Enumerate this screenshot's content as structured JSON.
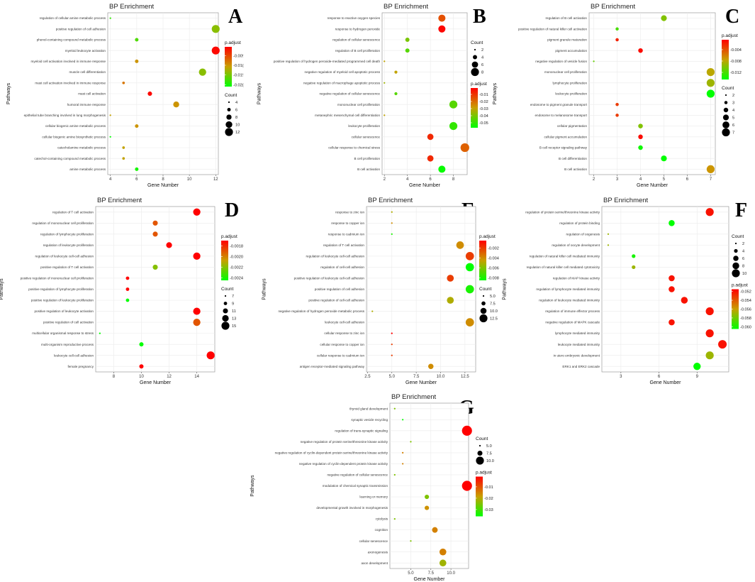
{
  "chart_data": [
    {
      "type": "scatter",
      "panel": "A",
      "title": "BP Enrichment",
      "xlabel": "Gene Number",
      "ylabel": "Pathways",
      "xlim": [
        3.8,
        12.2
      ],
      "xticks": [
        4,
        6,
        8,
        10,
        12
      ],
      "xtick_labels": [
        "4",
        "6",
        "8",
        "10",
        "12"
      ],
      "color_legend": {
        "title": "p.adjust",
        "min": -0.021,
        "max": -0.0005,
        "ticks": [
          -0.005,
          -0.01,
          -0.015,
          -0.02
        ],
        "tick_labels": [
          "-0.00!",
          "-0.01(",
          "-0.01!",
          "-0.02("
        ]
      },
      "size_legend": {
        "title": "Count",
        "values": [
          4,
          6,
          8,
          10,
          12
        ],
        "labels": [
          "4",
          "6",
          "8",
          "10",
          "12"
        ]
      },
      "categories": [
        "regulation of cellular amine metabolic process",
        "positive regulation of cell adhesion",
        "phenol-containing compound metabolic process",
        "myeloid leukocyte activation",
        "myeloid cell activation involved in immune response",
        "muscle cell differentiation",
        "mast cell activation involved in immune response",
        "mast cell activation",
        "humoral immune response",
        "epithelial tube branching involved in lung morphogenesis",
        "cellular biogenic amine metabolic process",
        "cellular biogenic amine biosynthetic process",
        "catecholamine metabolic process",
        "catechol-containing compound metabolic process",
        "amine metabolic process"
      ],
      "x": [
        4,
        12,
        6,
        12,
        6,
        11,
        5,
        7,
        9,
        4,
        6,
        4,
        5,
        5,
        6
      ],
      "p_adjust": [
        -0.0185,
        -0.014,
        -0.017,
        -0.001,
        -0.01,
        -0.014,
        -0.008,
        -0.001,
        -0.01,
        -0.011,
        -0.01,
        -0.021,
        -0.011,
        -0.011,
        -0.02
      ]
    },
    {
      "type": "scatter",
      "panel": "B",
      "title": "BP Enrichment",
      "xlabel": "Gene Number",
      "ylabel": "Pathways",
      "xlim": [
        1.8,
        9.2
      ],
      "xticks": [
        2,
        4,
        6,
        8
      ],
      "xtick_labels": [
        "2",
        "4",
        "6",
        "8"
      ],
      "color_legend": {
        "title": "p.adjust",
        "min": -0.057,
        "max": -0.001,
        "ticks": [
          -0.01,
          -0.02,
          -0.03,
          -0.04,
          -0.05
        ],
        "tick_labels": [
          "-0.01",
          "-0.02",
          "-0.03",
          "-0.04",
          "-0.05"
        ]
      },
      "size_legend": {
        "title": "Count",
        "values": [
          2,
          4,
          6,
          8
        ],
        "labels": [
          "2",
          "4",
          "6",
          "8"
        ]
      },
      "categories": [
        "response to reactive oxygen species",
        "response to hydrogen peroxide",
        "regulation of cellular senescence",
        "regulation of B cell proliferation",
        "positive regulation of hydrogen peroxide-mediated programmed cell death",
        "negative regulation of myeloid cell apoptotic process",
        "negative regulation of macrophage apoptotic process",
        "negative regulation of cellular senescence",
        "mononuclear cell proliferation",
        "metanephric mesenchymal cell differentiation",
        "leukocyte proliferation",
        "cellular senescence",
        "cellular response to chemical stress",
        "B cell proliferation",
        "B cell activation"
      ],
      "x": [
        7,
        7,
        4,
        4,
        2,
        3,
        2,
        3,
        8,
        2,
        8,
        6,
        9,
        6,
        7
      ],
      "p_adjust": [
        -0.015,
        -0.002,
        -0.04,
        -0.045,
        -0.03,
        -0.03,
        -0.035,
        -0.045,
        -0.045,
        -0.03,
        -0.05,
        -0.008,
        -0.018,
        -0.008,
        -0.056
      ]
    },
    {
      "type": "scatter",
      "panel": "C",
      "title": "BP Enrichment",
      "xlabel": "Gene Number",
      "ylabel": "Pathways",
      "xlim": [
        1.8,
        7.2
      ],
      "xticks": [
        2,
        3,
        4,
        5,
        6,
        7
      ],
      "xtick_labels": [
        "2",
        "3",
        "4",
        "5",
        "6",
        "7"
      ],
      "color_legend": {
        "title": "p.adjust",
        "min": -0.0145,
        "max": -0.0005,
        "ticks": [
          -0.004,
          -0.008,
          -0.012
        ],
        "tick_labels": [
          "-0.004",
          "-0.008",
          "-0.012"
        ]
      },
      "size_legend": {
        "title": "Count",
        "values": [
          2,
          3,
          4,
          5,
          6,
          7
        ],
        "labels": [
          "2",
          "3",
          "4",
          "5",
          "6",
          "7"
        ]
      },
      "categories": [
        "regulation of B cell activation",
        "positive regulation of natural killer cell activation",
        "pigment granule maturation",
        "pigment accumulation",
        "negative regulation of vesicle fusion",
        "mononuclear cell proliferation",
        "lymphocyte proliferation",
        "leukocyte proliferation",
        "endosome to pigment granule transport",
        "endosome to melanosome transport",
        "cellular pigmentation",
        "cellular pigment accumulation",
        "B cell receptor signaling pathway",
        "B cell differentiation",
        "B cell activation"
      ],
      "x": [
        5,
        3,
        3,
        4,
        2,
        7,
        7,
        7,
        3,
        3,
        4,
        4,
        4,
        5,
        7
      ],
      "p_adjust": [
        -0.01,
        -0.012,
        -0.002,
        -0.001,
        -0.011,
        -0.008,
        -0.009,
        -0.0145,
        -0.003,
        -0.003,
        -0.01,
        -0.001,
        -0.014,
        -0.0145,
        -0.007
      ]
    },
    {
      "type": "scatter",
      "panel": "D",
      "title": "BP Enrichment",
      "xlabel": "Gene Number",
      "ylabel": "Pathways",
      "xlim": [
        6.7,
        15.3
      ],
      "xticks": [
        8,
        10,
        12,
        14
      ],
      "xtick_labels": [
        "8",
        "10",
        "12",
        "14"
      ],
      "color_legend": {
        "title": "p.adjust",
        "min": -0.00245,
        "max": -0.0017,
        "ticks": [
          -0.0018,
          -0.002,
          -0.0022,
          -0.0024
        ],
        "tick_labels": [
          "-0.0018",
          "-0.0020",
          "-0.0022",
          "-0.0024"
        ]
      },
      "size_legend": {
        "title": "Count",
        "values": [
          7,
          9,
          11,
          13,
          15
        ],
        "labels": [
          "7",
          "9",
          "11",
          "13",
          "15"
        ]
      },
      "categories": [
        "regulation of T cell activation",
        "regulation of mononuclear cell proliferation",
        "regulation of lymphocyte proliferation",
        "regulation of leukocyte proliferation",
        "regulation of leukocyte cell-cell adhesion",
        "positive regulation of T cell activation",
        "positive regulation of mononuclear cell proliferation",
        "positive regulation of lymphocyte proliferation",
        "positive regulation of leukocyte proliferation",
        "positive regulation of leukocyte activation",
        "positive regulation of cell activation",
        "multicellular organismal response to stress",
        "multi-organism reproductive process",
        "leukocyte cell-cell adhesion",
        "female pregnancy"
      ],
      "x": [
        14,
        11,
        11,
        12,
        14,
        11,
        9,
        9,
        9,
        14,
        14,
        7,
        10,
        15,
        10
      ],
      "p_adjust": [
        -0.0017,
        -0.0019,
        -0.0019,
        -0.0017,
        -0.0017,
        -0.0022,
        -0.0017,
        -0.0017,
        -0.00245,
        -0.0017,
        -0.0019,
        -0.00245,
        -0.00245,
        -0.0017,
        -0.0017
      ]
    },
    {
      "type": "scatter",
      "panel": "E",
      "title": "BP Enrichment",
      "xlabel": "Gene Number",
      "ylabel": "Pathways",
      "xlim": [
        2.4,
        13.6
      ],
      "xticks": [
        2.5,
        5,
        7.5,
        10,
        12.5
      ],
      "xtick_labels": [
        "2.5",
        "5.0",
        "7.5",
        "10.0",
        "12.5"
      ],
      "color_legend": {
        "title": "p.adjust",
        "min": -0.0085,
        "max": -0.0005,
        "ticks": [
          -0.002,
          -0.004,
          -0.006,
          -0.008
        ],
        "tick_labels": [
          "-0.002",
          "-0.004",
          "-0.006",
          "-0.008"
        ]
      },
      "size_legend": {
        "title": "Count",
        "values": [
          5,
          7.5,
          10,
          12.5
        ],
        "labels": [
          "5.0",
          "7.5",
          "10.0",
          "12.5"
        ]
      },
      "categories": [
        "response to zinc ion",
        "response to copper ion",
        "response to cadmium ion",
        "regulation of T cell activation",
        "regulation of leukocyte cell-cell adhesion",
        "regulation of cell-cell adhesion",
        "positive regulation of leukocyte cell-cell adhesion",
        "positive regulation of cell adhesion",
        "positive regulation of cell-cell adhesion",
        "negative regulation of hydrogen peroxide metabolic process",
        "leukocyte cell-cell adhesion",
        "cellular response to zinc ion",
        "cellular response to copper ion",
        "cellular response to cadmium ion",
        "antigen receptor-mediated signaling pathway"
      ],
      "x": [
        5,
        5,
        5,
        12,
        13,
        13,
        11,
        13,
        11,
        3,
        13,
        5,
        5,
        5,
        9
      ],
      "p_adjust": [
        -0.005,
        -0.004,
        -0.008,
        -0.004,
        -0.002,
        -0.0085,
        -0.002,
        -0.008,
        -0.005,
        -0.005,
        -0.004,
        -0.0005,
        -0.002,
        -0.002,
        -0.004
      ]
    },
    {
      "type": "scatter",
      "panel": "F",
      "title": "BP Enrichment",
      "xlabel": "Gene Number",
      "ylabel": "Pathways",
      "xlim": [
        1.5,
        11.5
      ],
      "xticks": [
        3,
        6,
        9
      ],
      "xtick_labels": [
        "3",
        "6",
        "9"
      ],
      "color_legend": {
        "title": "p.adjust",
        "min": -0.0605,
        "max": -0.0515,
        "ticks": [
          -0.052,
          -0.054,
          -0.056,
          -0.058,
          -0.06
        ],
        "tick_labels": [
          "-0.052",
          "-0.054",
          "-0.056",
          "-0.058",
          "-0.060"
        ]
      },
      "size_legend": {
        "title": "Count",
        "values": [
          2,
          4,
          6,
          8,
          10
        ],
        "labels": [
          "2",
          "4",
          "6",
          "8",
          "10"
        ]
      },
      "categories": [
        "regulation of protein serine/threonine kinase activity",
        "regulation of protein binding",
        "regulation of oogenesis",
        "regulation of oocyte development",
        "regulation of natural killer cell mediated immunity",
        "regulation of natural killer cell mediated cytotoxicity",
        "regulation of MAP kinase activity",
        "regulation of lymphocyte mediated immunity",
        "regulation of leukocyte mediated immunity",
        "regulation of immune effector process",
        "negative regulation of MAPK cascade",
        "lymphocyte mediated immunity",
        "leukocyte mediated immunity",
        "in utero embryonic development",
        "ERK1 and ERK2 cascade"
      ],
      "x": [
        10,
        7,
        2,
        2,
        4,
        4,
        7,
        7,
        8,
        10,
        7,
        10,
        11,
        10,
        9
      ],
      "p_adjust": [
        -0.052,
        -0.0605,
        -0.057,
        -0.057,
        -0.06,
        -0.057,
        -0.052,
        -0.052,
        -0.052,
        -0.052,
        -0.052,
        -0.052,
        -0.052,
        -0.057,
        -0.0605
      ]
    },
    {
      "type": "scatter",
      "panel": "G",
      "title": "BP Enrichment",
      "xlabel": "Gene Number",
      "ylabel": "Pathways",
      "xlim": [
        2.4,
        12.2
      ],
      "xticks": [
        5,
        7.5,
        10
      ],
      "xtick_labels": [
        "5.0",
        "7.5",
        "10.0"
      ],
      "color_legend": {
        "title": "p.adjust",
        "min": -0.036,
        "max": -0.001,
        "ticks": [
          -0.01,
          -0.02,
          -0.03
        ],
        "tick_labels": [
          "-0.01",
          "-0.02",
          "-0.03"
        ]
      },
      "size_legend": {
        "title": "Count",
        "values": [
          5,
          7.5,
          10
        ],
        "labels": [
          "5.0",
          "7.5",
          "10.0"
        ]
      },
      "categories": [
        "thyroid gland development",
        "synaptic vesicle recycling",
        "regulation of trans-synaptic signaling",
        "negative regulation of protein serine/threonine kinase activity",
        "negative regulation of cyclin-dependent protein serine/threonine kinase activity",
        "negative regulation of cyclin-dependent protein kinase activity",
        "negative regulation of cellular senescence",
        "modulation of chemical synaptic transmission",
        "learning or memory",
        "developmental growth involved in morphogenesis",
        "cytolysis",
        "cognition",
        "cellular senescence",
        "axonogenesis",
        "axon development"
      ],
      "x": [
        3,
        4,
        12,
        5,
        4,
        4,
        3,
        12,
        7,
        7,
        3,
        8,
        5,
        9,
        9
      ],
      "p_adjust": [
        -0.025,
        -0.036,
        -0.001,
        -0.025,
        -0.015,
        -0.015,
        -0.025,
        -0.001,
        -0.025,
        -0.017,
        -0.025,
        -0.015,
        -0.025,
        -0.015,
        -0.022
      ]
    }
  ]
}
